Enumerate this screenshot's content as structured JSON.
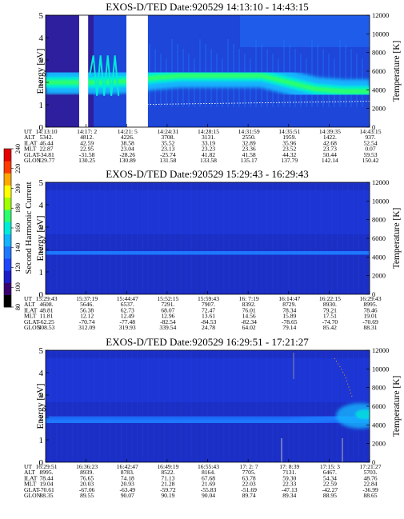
{
  "chart_data": [
    {
      "type": "heatmap",
      "title": "EXOS-D/TED   Date:920529   14:13:10 - 14:43:15",
      "ylabel": "Energy [eV]",
      "y2label": "Temperature [K]",
      "ylim": [
        0,
        5
      ],
      "yticks": [
        "0",
        "1",
        "2",
        "3",
        "4",
        "5"
      ],
      "y2lim": [
        0,
        12000
      ],
      "y2ticks": [
        "0",
        "2000",
        "4000",
        "6000",
        "8000",
        "10000",
        "12000"
      ],
      "band": {
        "center_ev": [
          2.0,
          2.0,
          2.0,
          2.05,
          2.2,
          2.3,
          2.3,
          2.3,
          2.3,
          2.0,
          1.7,
          1.6,
          1.6
        ],
        "level": "high"
      },
      "data_gaps": [
        {
          "from": "14:16:20",
          "to": "14:17:10"
        },
        {
          "from": "14:20:40",
          "to": "14:22:40"
        }
      ],
      "temperature_trace": {
        "approx_k": 2600
      },
      "table": {
        "row_labels": [
          "UT",
          "ALT",
          "ILAT",
          "MLT",
          "GLAT",
          "GLON"
        ],
        "columns": [
          [
            "14:13:10",
            "5342.",
            "46.44",
            "22.87",
            "-34.81",
            "129.77"
          ],
          [
            "14:17: 2",
            "4812.",
            "42.59",
            "22.95",
            "-31.58",
            "130.25"
          ],
          [
            "14:21: 5",
            "4226.",
            "38.58",
            "23.04",
            "-28.26",
            "130.89"
          ],
          [
            "14:24:31",
            "3708.",
            "35.52",
            "23.13",
            "-25.74",
            "131.58"
          ],
          [
            "14:28:15",
            "3131.",
            "33.19",
            "23.23",
            "41.82",
            "133.58"
          ],
          [
            "14:31:59",
            "2550.",
            "32.89",
            "23.36",
            "41.58",
            "135.17"
          ],
          [
            "14:35:51",
            "1959.",
            "35.96",
            "23.52",
            "44.32",
            "137.79"
          ],
          [
            "14:39:35",
            "1422.",
            "42.68",
            "23.73",
            "50.44",
            "142.14"
          ],
          [
            "14:43:15",
            "937.",
            "52.54",
            "0.07",
            "59.53",
            "150.42"
          ]
        ]
      }
    },
    {
      "type": "heatmap",
      "title": "EXOS-D/TED   Date:920529   15:29:43 - 16:29:43",
      "ylabel": "Energy [eV]",
      "y2label": "Temperature [K]",
      "ylim": [
        0,
        5
      ],
      "yticks": [
        "0",
        "1",
        "2",
        "3",
        "4",
        "5"
      ],
      "y2lim": [
        0,
        12000
      ],
      "y2ticks": [
        "0",
        "2000",
        "4000",
        "6000",
        "8000",
        "10000",
        "12000"
      ],
      "band": {
        "center_ev": [
          1.9,
          1.9,
          1.9,
          1.8,
          1.8,
          1.8,
          1.8,
          1.8,
          1.8,
          1.8,
          1.8,
          1.8,
          1.8
        ],
        "level": "low"
      },
      "table": {
        "row_labels": [
          "UT",
          "ALT",
          "ILAT",
          "MLT",
          "GLAT",
          "GLON"
        ],
        "columns": [
          [
            "15:29:43",
            "4608.",
            "48.81",
            "11.81",
            "-62.25",
            "308.53"
          ],
          [
            "15:37:19",
            "5646.",
            "56.38",
            "12.12",
            "-70.74",
            "312.09"
          ],
          [
            "15:44:47",
            "6537.",
            "62.73",
            "12.49",
            "-77.48",
            "319.93"
          ],
          [
            "15:52:15",
            "7291.",
            "68.07",
            "12.96",
            "-82.54",
            "339.54"
          ],
          [
            "15:59:43",
            "7907.",
            "72.47",
            "13.61",
            "-84.53",
            "24.78"
          ],
          [
            "16: 7:19",
            "8392.",
            "76.01",
            "14.56",
            "-82.34",
            "64.02"
          ],
          [
            "16:14:47",
            "8729.",
            "78.34",
            "15.89",
            "-78.65",
            "79.14"
          ],
          [
            "16:22:15",
            "8930.",
            "79.21",
            "17.51",
            "-74.70",
            "85.42"
          ],
          [
            "16:29:43",
            "8995.",
            "78.46",
            "19.01",
            "-70.69",
            "88.31"
          ]
        ]
      }
    },
    {
      "type": "heatmap",
      "title": "EXOS-D/TED   Date:920529   16:29:51 - 17:21:27",
      "ylabel": "Energy [eV]",
      "y2label": "Temperature [K]",
      "ylim": [
        0,
        5
      ],
      "yticks": [
        "0",
        "1",
        "2",
        "3",
        "4",
        "5"
      ],
      "y2lim": [
        0,
        12000
      ],
      "y2ticks": [
        "0",
        "2000",
        "4000",
        "6000",
        "8000",
        "10000",
        "12000"
      ],
      "band": {
        "center_ev": [
          1.8,
          1.8,
          1.8,
          1.8,
          1.8,
          1.8,
          1.8,
          1.8,
          1.8,
          1.8,
          1.9,
          2.0,
          2.0
        ],
        "level": "low_rising"
      },
      "table": {
        "row_labels": [
          "UT",
          "ALT",
          "ILAT",
          "MLT",
          "GLAT",
          "GLON"
        ],
        "columns": [
          [
            "16:29:51",
            "8995.",
            "78.44",
            "19.04",
            "-70.61",
            "88.35"
          ],
          [
            "16:36:23",
            "8939.",
            "76.65",
            "20.03",
            "-67.06",
            "89.55"
          ],
          [
            "16:42:47",
            "8783.",
            "74.18",
            "20.93",
            "-63.49",
            "90.07"
          ],
          [
            "16:49:19",
            "8522.",
            "71.13",
            "21.28",
            "-59.72",
            "90.19"
          ],
          [
            "16:55:43",
            "8164.",
            "67.68",
            "21.69",
            "-55.83",
            "90.04"
          ],
          [
            "17: 2: 7",
            "7705.",
            "63.78",
            "22.03",
            "-51.69",
            "89.74"
          ],
          [
            "17: 8:39",
            "7131.",
            "59.30",
            "22.33",
            "-47.13",
            "89.34"
          ],
          [
            "17:15: 3",
            "6467.",
            "54.34",
            "22.59",
            "-42.27",
            "88.95"
          ],
          [
            "17:21:27",
            "5703.",
            "48.76",
            "22.84",
            "-36.99",
            "88.65"
          ]
        ]
      }
    }
  ],
  "colorbar": {
    "label": "Second Harmonic Current",
    "min": 80,
    "max": 240,
    "ticks": [
      "80",
      "100",
      "120",
      "140",
      "160",
      "180",
      "200",
      "220",
      "240"
    ],
    "colors": [
      "#000000",
      "#3a0070",
      "#1c1cc8",
      "#1e46ff",
      "#1e78ff",
      "#12b4ff",
      "#00ecd8",
      "#2cff6e",
      "#a0ff00",
      "#ffff00",
      "#ffa800",
      "#ff3c00",
      "#e60000"
    ]
  }
}
